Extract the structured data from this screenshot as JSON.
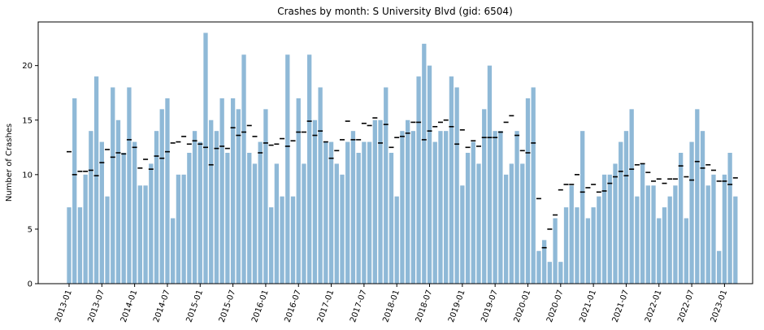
{
  "chart_data": {
    "type": "bar",
    "title": "Crashes by month: S University Blvd (gid: 6504)",
    "xlabel": "",
    "ylabel": "Number of Crashes",
    "ylim": [
      0,
      24
    ],
    "yticks": [
      0,
      5,
      10,
      15,
      20
    ],
    "grid": false,
    "legend": "none",
    "start_month": "2013-01",
    "categories": [
      "2013-01",
      "2013-02",
      "2013-03",
      "2013-04",
      "2013-05",
      "2013-06",
      "2013-07",
      "2013-08",
      "2013-09",
      "2013-10",
      "2013-11",
      "2013-12",
      "2014-01",
      "2014-02",
      "2014-03",
      "2014-04",
      "2014-05",
      "2014-06",
      "2014-07",
      "2014-08",
      "2014-09",
      "2014-10",
      "2014-11",
      "2014-12",
      "2015-01",
      "2015-02",
      "2015-03",
      "2015-04",
      "2015-05",
      "2015-06",
      "2015-07",
      "2015-08",
      "2015-09",
      "2015-10",
      "2015-11",
      "2015-12",
      "2016-01",
      "2016-02",
      "2016-03",
      "2016-04",
      "2016-05",
      "2016-06",
      "2016-07",
      "2016-08",
      "2016-09",
      "2016-10",
      "2016-11",
      "2016-12",
      "2017-01",
      "2017-02",
      "2017-03",
      "2017-04",
      "2017-05",
      "2017-06",
      "2017-07",
      "2017-08",
      "2017-09",
      "2017-10",
      "2017-11",
      "2017-12",
      "2018-01",
      "2018-02",
      "2018-03",
      "2018-04",
      "2018-05",
      "2018-06",
      "2018-07",
      "2018-08",
      "2018-09",
      "2018-10",
      "2018-11",
      "2018-12",
      "2019-01",
      "2019-02",
      "2019-03",
      "2019-04",
      "2019-05",
      "2019-06",
      "2019-07",
      "2019-08",
      "2019-09",
      "2019-10",
      "2019-11",
      "2019-12",
      "2020-01",
      "2020-02",
      "2020-03",
      "2020-04",
      "2020-05",
      "2020-06",
      "2020-07",
      "2020-08",
      "2020-09",
      "2020-10",
      "2020-11",
      "2020-12",
      "2021-01",
      "2021-02",
      "2021-03",
      "2021-04",
      "2021-05",
      "2021-06",
      "2021-07",
      "2021-08",
      "2021-09",
      "2021-10",
      "2021-11",
      "2021-12",
      "2022-01",
      "2022-02",
      "2022-03",
      "2022-04",
      "2022-05",
      "2022-06",
      "2022-07",
      "2022-08",
      "2022-09",
      "2022-10",
      "2022-11",
      "2022-12",
      "2023-01",
      "2023-02",
      "2023-03"
    ],
    "xtick_labels": [
      "2013-01",
      "2013-07",
      "2014-01",
      "2014-07",
      "2015-01",
      "2015-07",
      "2016-01",
      "2016-07",
      "2017-01",
      "2017-07",
      "2018-01",
      "2018-07",
      "2019-01",
      "2019-07",
      "2020-01",
      "2020-07",
      "2021-01",
      "2021-07",
      "2022-01",
      "2022-07",
      "2023-01"
    ],
    "values": [
      7,
      17,
      7,
      10,
      14,
      19,
      13,
      8,
      18,
      15,
      12,
      18,
      13,
      9,
      9,
      11,
      14,
      16,
      17,
      6,
      10,
      10,
      12,
      14,
      13,
      23,
      15,
      14,
      17,
      12,
      17,
      16,
      21,
      12,
      11,
      13,
      16,
      7,
      11,
      8,
      21,
      8,
      17,
      11,
      21,
      15,
      18,
      13,
      13,
      11,
      10,
      13,
      14,
      12,
      13,
      13,
      15,
      15,
      18,
      12,
      8,
      14,
      15,
      14,
      19,
      22,
      20,
      13,
      14,
      14,
      19,
      18,
      9,
      12,
      13,
      11,
      16,
      20,
      14,
      14,
      10,
      11,
      14,
      11,
      17,
      18,
      3,
      4,
      2,
      6,
      2,
      7,
      9,
      7,
      14,
      6,
      7,
      8,
      10,
      10,
      11,
      13,
      14,
      16,
      8,
      11,
      9,
      9,
      6,
      7,
      8,
      9,
      12,
      6,
      13,
      16,
      14,
      9,
      10,
      3,
      10,
      12,
      8
    ],
    "markers": [
      12.1,
      10.0,
      10.3,
      10.3,
      10.4,
      9.9,
      11.1,
      12.3,
      11.6,
      12.0,
      11.9,
      13.2,
      12.5,
      10.6,
      11.4,
      10.5,
      11.7,
      11.5,
      12.1,
      12.9,
      13.0,
      13.5,
      12.8,
      13.1,
      12.8,
      12.5,
      10.9,
      12.4,
      12.6,
      12.4,
      14.3,
      13.6,
      13.9,
      14.5,
      13.5,
      12.0,
      12.9,
      12.7,
      12.8,
      13.3,
      12.6,
      13.1,
      13.9,
      13.9,
      14.9,
      13.6,
      14.0,
      13.0,
      11.5,
      12.2,
      13.2,
      14.9,
      13.2,
      13.2,
      14.7,
      14.5,
      15.2,
      12.9,
      14.6,
      12.5,
      13.4,
      13.5,
      13.8,
      14.8,
      14.8,
      13.2,
      14.0,
      14.4,
      14.8,
      15.0,
      14.4,
      12.8,
      14.1,
      12.5,
      13.1,
      12.6,
      13.4,
      13.4,
      13.4,
      13.9,
      14.8,
      15.4,
      13.6,
      12.2,
      12.0,
      12.9,
      7.8,
      3.3,
      5.0,
      6.3,
      8.6,
      9.1,
      9.1,
      10.0,
      8.4,
      8.8,
      9.1,
      8.4,
      8.5,
      9.2,
      9.8,
      10.3,
      9.9,
      10.5,
      10.9,
      11.0,
      10.2,
      9.4,
      9.6,
      9.2,
      9.6,
      9.6,
      10.8,
      9.8,
      9.5,
      11.2,
      10.6,
      10.9,
      10.4,
      9.4,
      9.4,
      9.1,
      9.7
    ]
  }
}
